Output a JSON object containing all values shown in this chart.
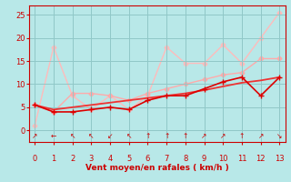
{
  "xlabel": "Vent moyen/en rafales ( km/h )",
  "bg_color": "#b8e8e8",
  "grid_color": "#90c8c8",
  "text_color": "#cc0000",
  "xlim": [
    -0.3,
    13.3
  ],
  "ylim": [
    -2.5,
    27
  ],
  "xticks": [
    0,
    1,
    2,
    3,
    4,
    5,
    6,
    7,
    8,
    9,
    10,
    11,
    12,
    13
  ],
  "yticks": [
    0,
    5,
    10,
    15,
    20,
    25
  ],
  "series": [
    {
      "x": [
        0,
        1,
        2,
        3,
        4,
        5,
        6,
        7,
        8,
        9,
        10,
        11,
        12,
        13
      ],
      "y": [
        1.0,
        18.0,
        7.5,
        4.5,
        7.5,
        4.5,
        7.5,
        18.0,
        14.5,
        14.5,
        18.5,
        14.5,
        20.0,
        25.5
      ],
      "color": "#ffbbbb",
      "lw": 1.0,
      "marker": "D",
      "ms": 2.5,
      "zorder": 1
    },
    {
      "x": [
        0,
        1,
        2,
        3,
        4,
        5,
        6,
        7,
        8,
        9,
        10,
        11,
        12,
        13
      ],
      "y": [
        5.5,
        4.0,
        8.0,
        8.0,
        7.5,
        6.5,
        8.0,
        9.0,
        10.0,
        11.0,
        12.0,
        12.5,
        15.5,
        15.5
      ],
      "color": "#ffaaaa",
      "lw": 1.0,
      "marker": "D",
      "ms": 2.5,
      "zorder": 1
    },
    {
      "x": [
        0,
        1,
        2,
        3,
        4,
        5,
        6,
        7,
        8,
        9,
        10,
        11,
        12,
        13
      ],
      "y": [
        5.5,
        4.0,
        4.0,
        4.5,
        5.0,
        4.5,
        6.5,
        7.5,
        7.5,
        9.0,
        10.5,
        11.5,
        7.5,
        11.5
      ],
      "color": "#dd0000",
      "lw": 1.2,
      "marker": "+",
      "ms": 4,
      "zorder": 3
    },
    {
      "x": [
        0,
        1,
        2,
        3,
        4,
        5,
        6,
        7,
        8,
        9,
        10,
        11,
        12,
        13
      ],
      "y": [
        5.5,
        4.5,
        5.0,
        5.5,
        6.0,
        6.5,
        7.0,
        7.5,
        8.0,
        8.7,
        9.5,
        10.3,
        10.8,
        11.5
      ],
      "color": "#ee3333",
      "lw": 1.3,
      "marker": null,
      "ms": 0,
      "zorder": 2
    }
  ],
  "arrow_syms": [
    "↗",
    "←",
    "↖",
    "↖",
    "↙",
    "↖",
    "↑",
    "↑",
    "↑",
    "↗",
    "↗",
    "↑",
    "↗",
    "↘"
  ]
}
